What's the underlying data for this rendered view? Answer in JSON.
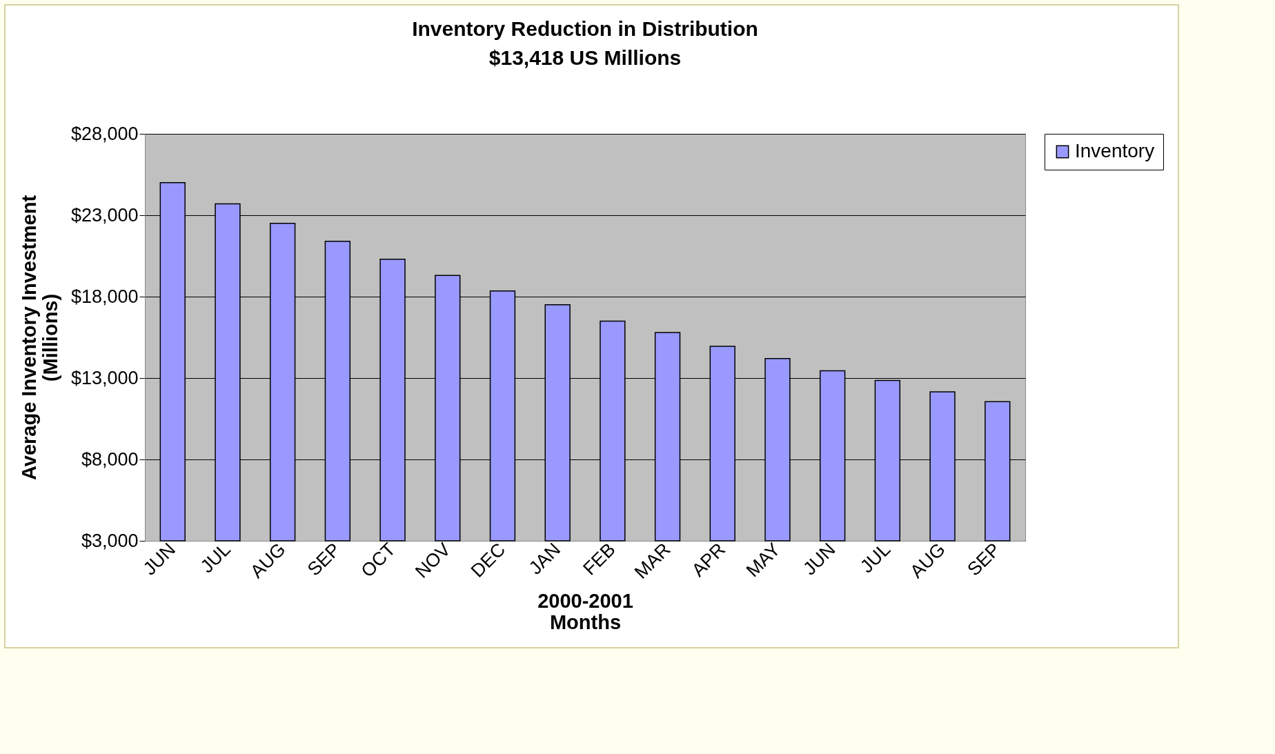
{
  "chart_data": {
    "type": "bar",
    "title": "Inventory Reduction in Distribution",
    "subtitle": "$13,418 US Millions",
    "xlabel": "2000-2001\nMonths",
    "ylabel": "Average Inventory Investment\n(Millions)",
    "categories": [
      "JUN",
      "JUL",
      "AUG",
      "SEP",
      "OCT",
      "NOV",
      "DEC",
      "JAN",
      "FEB",
      "MAR",
      "APR",
      "MAY",
      "JUN",
      "JUL",
      "AUG",
      "SEP"
    ],
    "series": [
      {
        "name": "Inventory",
        "color": "#9999ff",
        "values": [
          25000,
          23700,
          22500,
          21400,
          20300,
          19300,
          18350,
          17500,
          16500,
          15800,
          14950,
          14200,
          13450,
          12850,
          12150,
          11550
        ]
      }
    ],
    "ylim": [
      3000,
      28000
    ],
    "yticks": [
      {
        "value": 3000,
        "label": "$3,000"
      },
      {
        "value": 8000,
        "label": "$8,000"
      },
      {
        "value": 13000,
        "label": "$13,000"
      },
      {
        "value": 18000,
        "label": "$18,000"
      },
      {
        "value": 23000,
        "label": "$23,000"
      },
      {
        "value": 28000,
        "label": "$28,000"
      }
    ],
    "grid": "y",
    "legend": "right"
  }
}
